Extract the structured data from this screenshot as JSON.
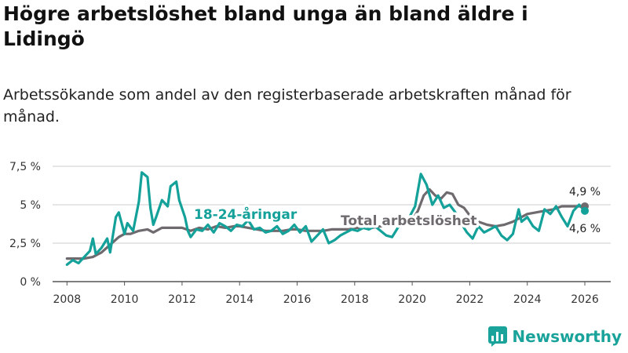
{
  "title": "Högre arbetslöshet bland unga än bland äldre i Lidingö",
  "subtitle": "Arbetssökande som andel av den registerbaserade arbetskraften månad för månad.",
  "colors": {
    "young": "#13a19a",
    "total": "#6e6a6e",
    "grid": "#d6d6d6",
    "brand": "#1aa39a"
  },
  "brand": {
    "name": "Newsworthy",
    "icon": "bar-chart-logo-icon"
  },
  "chart_data": {
    "type": "line",
    "title": "Högre arbetslöshet bland unga än bland äldre i Lidingö",
    "xlabel": "",
    "ylabel": "",
    "xlim": [
      2007.5,
      2026.9
    ],
    "ylim": [
      0,
      7.5
    ],
    "grid": true,
    "x_ticks": [
      2008,
      2010,
      2012,
      2014,
      2016,
      2018,
      2020,
      2022,
      2024,
      2026
    ],
    "y_ticks": [
      {
        "value": 0,
        "label": "0 %"
      },
      {
        "value": 2.5,
        "label": "2,5 %"
      },
      {
        "value": 5,
        "label": "5 %"
      },
      {
        "value": 7.5,
        "label": "7,5 %"
      }
    ],
    "series": [
      {
        "name": "Total arbetslöshet",
        "label": "Total arbetslöshet",
        "end_label": "4,9 %",
        "points": [
          [
            2008.0,
            1.5
          ],
          [
            2008.3,
            1.5
          ],
          [
            2008.6,
            1.5
          ],
          [
            2008.9,
            1.6
          ],
          [
            2009.2,
            1.9
          ],
          [
            2009.5,
            2.4
          ],
          [
            2009.8,
            2.9
          ],
          [
            2010.0,
            3.1
          ],
          [
            2010.2,
            3.1
          ],
          [
            2010.5,
            3.3
          ],
          [
            2010.8,
            3.4
          ],
          [
            2011.0,
            3.2
          ],
          [
            2011.3,
            3.5
          ],
          [
            2011.6,
            3.5
          ],
          [
            2012.0,
            3.5
          ],
          [
            2012.3,
            3.3
          ],
          [
            2012.6,
            3.5
          ],
          [
            2012.9,
            3.4
          ],
          [
            2013.2,
            3.6
          ],
          [
            2013.5,
            3.5
          ],
          [
            2013.8,
            3.6
          ],
          [
            2014.0,
            3.6
          ],
          [
            2014.3,
            3.5
          ],
          [
            2014.6,
            3.4
          ],
          [
            2014.9,
            3.3
          ],
          [
            2015.2,
            3.3
          ],
          [
            2015.5,
            3.3
          ],
          [
            2015.8,
            3.4
          ],
          [
            2016.0,
            3.4
          ],
          [
            2016.3,
            3.3
          ],
          [
            2016.6,
            3.3
          ],
          [
            2016.9,
            3.3
          ],
          [
            2017.2,
            3.4
          ],
          [
            2017.5,
            3.4
          ],
          [
            2017.8,
            3.4
          ],
          [
            2018.0,
            3.5
          ],
          [
            2018.3,
            3.5
          ],
          [
            2018.6,
            3.5
          ],
          [
            2018.9,
            3.6
          ],
          [
            2019.2,
            3.6
          ],
          [
            2019.5,
            3.7
          ],
          [
            2019.8,
            3.8
          ],
          [
            2020.0,
            4.0
          ],
          [
            2020.2,
            4.6
          ],
          [
            2020.4,
            5.6
          ],
          [
            2020.6,
            6.0
          ],
          [
            2020.8,
            5.6
          ],
          [
            2021.0,
            5.4
          ],
          [
            2021.2,
            5.8
          ],
          [
            2021.4,
            5.7
          ],
          [
            2021.6,
            5.0
          ],
          [
            2021.8,
            4.8
          ],
          [
            2022.0,
            4.3
          ],
          [
            2022.3,
            3.9
          ],
          [
            2022.6,
            3.7
          ],
          [
            2022.9,
            3.6
          ],
          [
            2023.2,
            3.7
          ],
          [
            2023.5,
            3.9
          ],
          [
            2023.8,
            4.2
          ],
          [
            2024.0,
            4.4
          ],
          [
            2024.3,
            4.5
          ],
          [
            2024.6,
            4.6
          ],
          [
            2024.9,
            4.7
          ],
          [
            2025.2,
            4.9
          ],
          [
            2025.5,
            4.9
          ],
          [
            2025.8,
            4.9
          ],
          [
            2026.0,
            4.9
          ]
        ]
      },
      {
        "name": "18-24-åringar",
        "label": "18-24-åringar",
        "end_label": "4,6 %",
        "points": [
          [
            2008.0,
            1.1
          ],
          [
            2008.2,
            1.4
          ],
          [
            2008.4,
            1.2
          ],
          [
            2008.6,
            1.6
          ],
          [
            2008.8,
            2.0
          ],
          [
            2008.9,
            2.8
          ],
          [
            2009.0,
            1.8
          ],
          [
            2009.2,
            2.2
          ],
          [
            2009.4,
            2.8
          ],
          [
            2009.5,
            1.9
          ],
          [
            2009.7,
            4.2
          ],
          [
            2009.8,
            4.5
          ],
          [
            2010.0,
            3.1
          ],
          [
            2010.1,
            3.8
          ],
          [
            2010.3,
            3.3
          ],
          [
            2010.5,
            5.2
          ],
          [
            2010.6,
            7.1
          ],
          [
            2010.8,
            6.8
          ],
          [
            2010.9,
            4.8
          ],
          [
            2011.0,
            3.7
          ],
          [
            2011.1,
            4.2
          ],
          [
            2011.3,
            5.3
          ],
          [
            2011.5,
            4.9
          ],
          [
            2011.6,
            6.2
          ],
          [
            2011.8,
            6.5
          ],
          [
            2011.9,
            5.3
          ],
          [
            2012.1,
            4.2
          ],
          [
            2012.2,
            3.3
          ],
          [
            2012.3,
            2.9
          ],
          [
            2012.5,
            3.4
          ],
          [
            2012.7,
            3.3
          ],
          [
            2012.9,
            3.7
          ],
          [
            2013.1,
            3.2
          ],
          [
            2013.3,
            3.8
          ],
          [
            2013.5,
            3.6
          ],
          [
            2013.7,
            3.3
          ],
          [
            2013.9,
            3.7
          ],
          [
            2014.1,
            3.6
          ],
          [
            2014.3,
            4.0
          ],
          [
            2014.5,
            3.4
          ],
          [
            2014.7,
            3.5
          ],
          [
            2014.9,
            3.2
          ],
          [
            2015.1,
            3.3
          ],
          [
            2015.3,
            3.6
          ],
          [
            2015.5,
            3.1
          ],
          [
            2015.7,
            3.3
          ],
          [
            2015.9,
            3.7
          ],
          [
            2016.1,
            3.2
          ],
          [
            2016.3,
            3.6
          ],
          [
            2016.5,
            2.6
          ],
          [
            2016.7,
            3.0
          ],
          [
            2016.9,
            3.4
          ],
          [
            2017.1,
            2.5
          ],
          [
            2017.3,
            2.7
          ],
          [
            2017.5,
            3.0
          ],
          [
            2017.7,
            3.2
          ],
          [
            2017.9,
            3.4
          ],
          [
            2018.1,
            3.3
          ],
          [
            2018.3,
            3.5
          ],
          [
            2018.5,
            3.4
          ],
          [
            2018.7,
            3.6
          ],
          [
            2018.9,
            3.3
          ],
          [
            2019.1,
            3.0
          ],
          [
            2019.3,
            2.9
          ],
          [
            2019.5,
            3.5
          ],
          [
            2019.7,
            3.8
          ],
          [
            2019.9,
            4.2
          ],
          [
            2020.1,
            4.9
          ],
          [
            2020.3,
            7.0
          ],
          [
            2020.5,
            6.3
          ],
          [
            2020.7,
            5.0
          ],
          [
            2020.9,
            5.6
          ],
          [
            2021.1,
            4.8
          ],
          [
            2021.3,
            5.0
          ],
          [
            2021.5,
            4.5
          ],
          [
            2021.7,
            3.8
          ],
          [
            2021.9,
            3.2
          ],
          [
            2022.1,
            2.8
          ],
          [
            2022.3,
            3.6
          ],
          [
            2022.5,
            3.2
          ],
          [
            2022.7,
            3.4
          ],
          [
            2022.9,
            3.6
          ],
          [
            2023.1,
            3.0
          ],
          [
            2023.3,
            2.7
          ],
          [
            2023.5,
            3.1
          ],
          [
            2023.7,
            4.7
          ],
          [
            2023.8,
            3.9
          ],
          [
            2024.0,
            4.2
          ],
          [
            2024.2,
            3.6
          ],
          [
            2024.4,
            3.3
          ],
          [
            2024.6,
            4.7
          ],
          [
            2024.8,
            4.4
          ],
          [
            2025.0,
            4.9
          ],
          [
            2025.2,
            4.2
          ],
          [
            2025.4,
            3.6
          ],
          [
            2025.6,
            4.6
          ],
          [
            2025.8,
            5.0
          ],
          [
            2026.0,
            4.6
          ]
        ]
      }
    ]
  }
}
